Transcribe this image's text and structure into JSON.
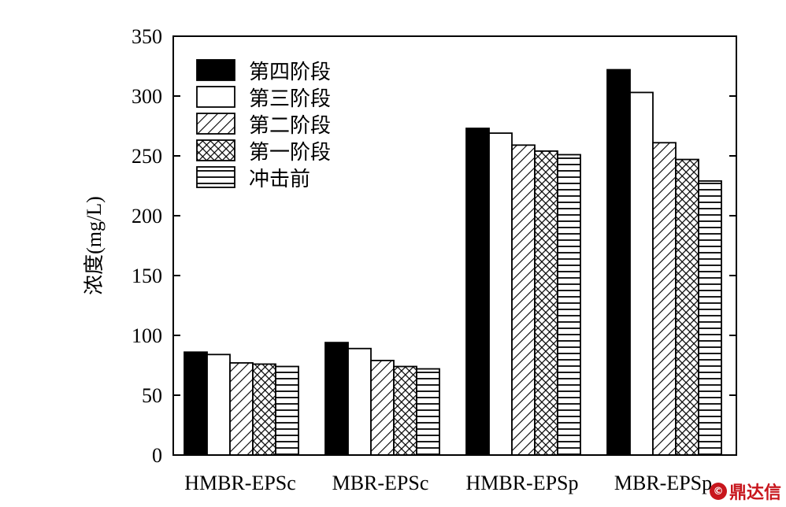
{
  "chart_data": {
    "type": "bar",
    "title": "",
    "xlabel": "",
    "ylabel": "浓度(mg/L)",
    "ylim": [
      0,
      350
    ],
    "yticks": [
      0,
      50,
      100,
      150,
      200,
      250,
      300,
      350
    ],
    "categories": [
      "HMBR-EPSc",
      "MBR-EPSc",
      "HMBR-EPSp",
      "MBR-EPSp"
    ],
    "series": [
      {
        "name": "第四阶段",
        "pattern": "solid",
        "values": [
          86,
          94,
          273,
          322
        ]
      },
      {
        "name": "第三阶段",
        "pattern": "white",
        "values": [
          84,
          89,
          269,
          303
        ]
      },
      {
        "name": "第二阶段",
        "pattern": "diagonal",
        "values": [
          77,
          79,
          259,
          261
        ]
      },
      {
        "name": "第一阶段",
        "pattern": "crosshatch",
        "values": [
          76,
          74,
          254,
          247
        ]
      },
      {
        "name": "冲击前",
        "pattern": "horizontal",
        "values": [
          74,
          72,
          251,
          229
        ]
      }
    ],
    "legend_position": "top-left",
    "grid": false
  },
  "watermark": {
    "text": "鼎达信",
    "badge": "©",
    "color": "#c8161d"
  }
}
